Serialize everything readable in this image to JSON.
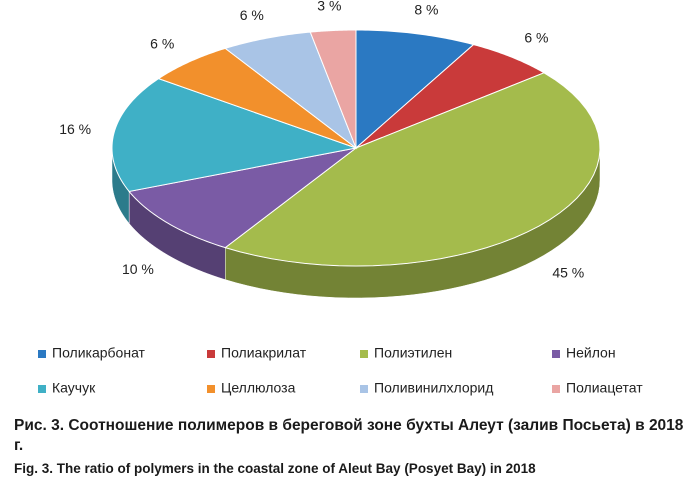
{
  "chart_data": {
    "type": "pie3d",
    "title": "Рис. 3. Соотношение полимеров в береговой зоне бухты Алеут (залив Посьета) в 2018 г.",
    "subtitle": "Fig. 3. The ratio of polymers in the coastal zone of Aleut Bay (Posyet Bay) in 2018",
    "categories": [
      "Поликарбонат",
      "Полиакрилат",
      "Полиэтилен",
      "Нейлон",
      "Каучук",
      "Целлюлоза",
      "Поливинилхлорид",
      "Полиацетат"
    ],
    "values": [
      8,
      6,
      45,
      10,
      16,
      6,
      6,
      3
    ],
    "value_labels": [
      "8 %",
      "6 %",
      "45 %",
      "10 %",
      "16 %",
      "6 %",
      "6 %",
      "3 %"
    ],
    "colors": [
      "#2b79c2",
      "#c93a3a",
      "#a4bb4c",
      "#7a5ba5",
      "#3fb0c6",
      "#f2902c",
      "#a9c4e6",
      "#eaa5a3"
    ],
    "legend": "bottom"
  }
}
